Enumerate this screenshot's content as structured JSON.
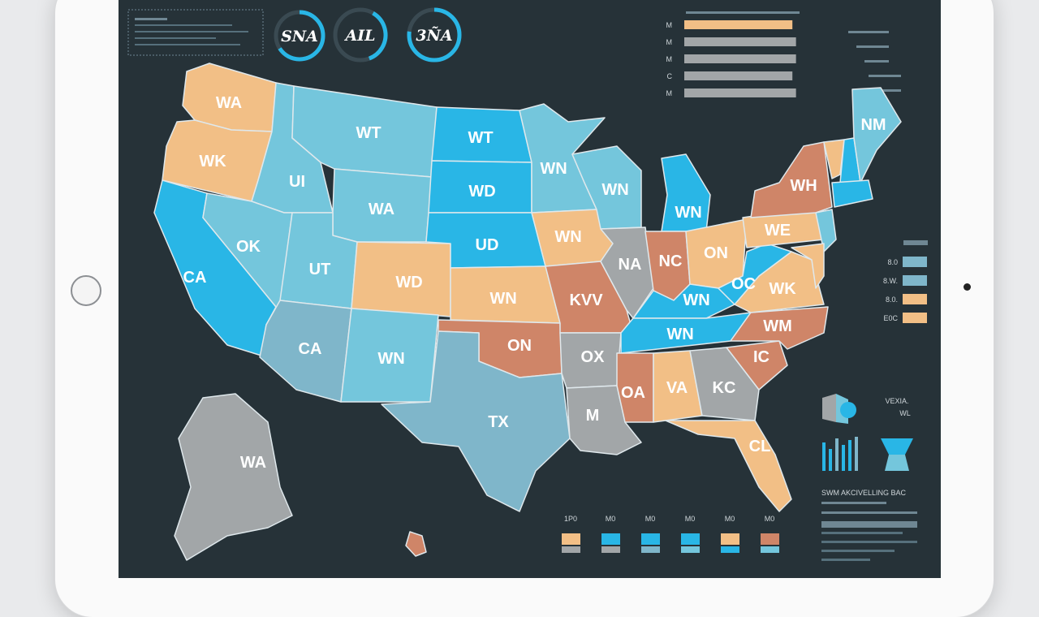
{
  "device": {
    "type": "tablet"
  },
  "colors": {
    "background": "#263238",
    "blue": "#29b6e6",
    "light_blue": "#74c6dc",
    "steel_blue": "#7fb6ca",
    "orange": "#f2bf86",
    "terracotta": "#cf8568",
    "gray": "#a2a6a8",
    "border": "#dfe8ec"
  },
  "gauges": [
    {
      "label": "SNA",
      "color": "#29b6e6"
    },
    {
      "label": "AIL",
      "color": "#29b6e6"
    },
    {
      "label": "3ÑA",
      "color": "#29b6e6"
    }
  ],
  "top_right_bars": {
    "labels": [
      "M",
      "M",
      "M",
      "C",
      "M"
    ],
    "colors": [
      "#f2bf86",
      "#a2a6a8",
      "#a2a6a8",
      "#a2a6a8",
      "#a2a6a8"
    ],
    "levels": [
      0.9,
      0.93,
      0.93,
      0.9,
      0.93
    ]
  },
  "right_legend": {
    "labels": [
      "8.0",
      "8.W.",
      "8.0.",
      "E0C"
    ],
    "colors": [
      "#7fb6ca",
      "#7fb6ca",
      "#f2bf86",
      "#f2bf86"
    ]
  },
  "bottom_legend": {
    "labels": [
      "1P0",
      "M0",
      "M0",
      "M0",
      "M0",
      "M0"
    ]
  },
  "widget_titles": {
    "vehicle_text": "VEXIA.",
    "vehicle_sub": "WL"
  },
  "text_block": {
    "heading": "SWM AKCIVELLING BAC"
  },
  "map": {
    "states": [
      {
        "id": "wa",
        "label": "WA",
        "color": "#f2bf86"
      },
      {
        "id": "or",
        "label": "WK",
        "color": "#f2bf86"
      },
      {
        "id": "ca",
        "label": "CA",
        "color": "#29b6e6"
      },
      {
        "id": "id",
        "label": "UI",
        "color": "#74c6dc"
      },
      {
        "id": "nv",
        "label": "OK",
        "color": "#74c6dc"
      },
      {
        "id": "mt",
        "label": "WT",
        "color": "#74c6dc"
      },
      {
        "id": "wy",
        "label": "WA",
        "color": "#74c6dc"
      },
      {
        "id": "ut",
        "label": "UT",
        "color": "#74c6dc"
      },
      {
        "id": "az",
        "label": "CA",
        "color": "#7fb6ca"
      },
      {
        "id": "co",
        "label": "WD",
        "color": "#f2bf86"
      },
      {
        "id": "nm",
        "label": "WN",
        "color": "#74c6dc"
      },
      {
        "id": "nd",
        "label": "WT",
        "color": "#29b6e6"
      },
      {
        "id": "sd",
        "label": "WD",
        "color": "#29b6e6"
      },
      {
        "id": "ne",
        "label": "UD",
        "color": "#29b6e6"
      },
      {
        "id": "ks",
        "label": "WN",
        "color": "#f2bf86"
      },
      {
        "id": "ok",
        "label": "ON",
        "color": "#cf8568"
      },
      {
        "id": "tx",
        "label": "TX",
        "color": "#7fb6ca"
      },
      {
        "id": "mn",
        "label": "WN",
        "color": "#74c6dc"
      },
      {
        "id": "ia",
        "label": "WN",
        "color": "#f2bf86"
      },
      {
        "id": "mo",
        "label": "KVV",
        "color": "#cf8568"
      },
      {
        "id": "ar",
        "label": "OX",
        "color": "#a2a6a8"
      },
      {
        "id": "la",
        "label": "M",
        "color": "#a2a6a8"
      },
      {
        "id": "wi",
        "label": "WN",
        "color": "#74c6dc"
      },
      {
        "id": "il",
        "label": "NA",
        "color": "#a2a6a8"
      },
      {
        "id": "mi",
        "label": "WN",
        "color": "#29b6e6"
      },
      {
        "id": "in",
        "label": "NC",
        "color": "#cf8568"
      },
      {
        "id": "oh",
        "label": "ON",
        "color": "#f2bf86"
      },
      {
        "id": "ky",
        "label": "WN",
        "color": "#29b6e6"
      },
      {
        "id": "tn",
        "label": "WN",
        "color": "#29b6e6"
      },
      {
        "id": "ms",
        "label": "OA",
        "color": "#cf8568"
      },
      {
        "id": "al",
        "label": "VA",
        "color": "#f2bf86"
      },
      {
        "id": "ga",
        "label": "KC",
        "color": "#a2a6a8"
      },
      {
        "id": "fl",
        "label": "CL",
        "color": "#f2bf86"
      },
      {
        "id": "sc",
        "label": "IC",
        "color": "#cf8568"
      },
      {
        "id": "nc",
        "label": "WM",
        "color": "#cf8568"
      },
      {
        "id": "va",
        "label": "WK",
        "color": "#f2bf86"
      },
      {
        "id": "wv",
        "label": "OC",
        "color": "#29b6e6"
      },
      {
        "id": "pa",
        "label": "WE",
        "color": "#f2bf86"
      },
      {
        "id": "ny",
        "label": "WH",
        "color": "#cf8568"
      },
      {
        "id": "vt",
        "label": "",
        "color": "#f2bf86"
      },
      {
        "id": "nh",
        "label": "",
        "color": "#29b6e6"
      },
      {
        "id": "me",
        "label": "NM",
        "color": "#74c6dc"
      },
      {
        "id": "ma",
        "label": "",
        "color": "#29b6e6"
      },
      {
        "id": "nj",
        "label": "",
        "color": "#74c6dc"
      },
      {
        "id": "md",
        "label": "",
        "color": "#f2bf86"
      },
      {
        "id": "ak",
        "label": "WA",
        "color": "#a2a6a8"
      },
      {
        "id": "hi",
        "label": "",
        "color": "#cf8568"
      }
    ]
  }
}
